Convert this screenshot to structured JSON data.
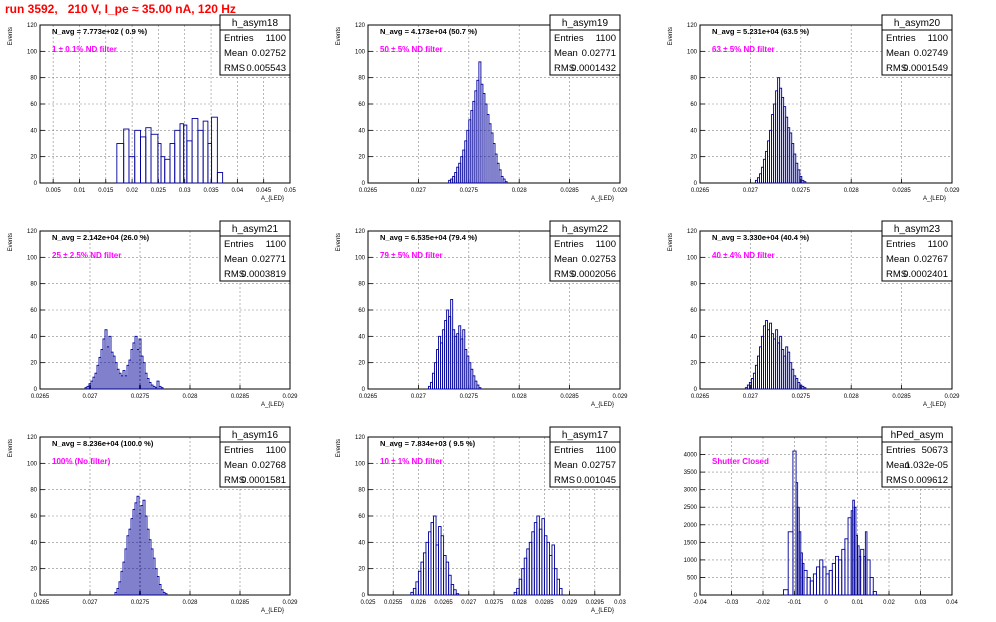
{
  "page_title": "run 3592,   210 V, I_pe ≈ 35.00 nA, 120 Hz",
  "chart_data": [
    {
      "type": "histogram",
      "hist_name": "h_asym18",
      "navg_text": "N_avg = 7.773e+02 ( 0.9 %)",
      "filter_text": "1 ± 0.1% ND filter",
      "stats": [
        [
          "Entries",
          "1100"
        ],
        [
          "Mean",
          "0.02752"
        ],
        [
          "RMS",
          "0.005543"
        ]
      ],
      "ylabel": "Events",
      "xlabel": "A_{LED}",
      "xlim": [
        0.0025,
        0.05
      ],
      "ylim": [
        0,
        120
      ],
      "xticks": [
        0.005,
        0.01,
        0.015,
        0.02,
        0.025,
        0.03,
        0.035,
        0.04,
        0.045,
        0.05
      ],
      "xtick_labels": [
        "0.005",
        "0.01",
        "0.015",
        "0.02",
        "0.025",
        "0.03",
        "0.035",
        "0.04",
        "0.045",
        "0.05"
      ],
      "yticks": [
        0,
        20,
        40,
        60,
        80,
        100,
        120
      ],
      "ytick_labels": [
        "0",
        "20",
        "40",
        "60",
        "80",
        "100",
        "120"
      ],
      "bins": {
        "edges": [
          0.0171,
          0.0184,
          0.0194,
          0.0205,
          0.0216,
          0.0226,
          0.0236,
          0.0249,
          0.0255,
          0.0262,
          0.0272,
          0.0281,
          0.0291,
          0.0298,
          0.0304,
          0.0314,
          0.0325,
          0.0335,
          0.0344,
          0.0351,
          0.0362,
          0.0372
        ],
        "values": [
          30,
          41,
          20,
          40,
          35,
          42,
          37,
          30,
          20,
          18,
          30,
          40,
          45,
          44,
          32,
          49,
          40,
          47,
          30,
          50,
          8
        ]
      }
    },
    {
      "type": "histogram",
      "hist_name": "h_asym19",
      "navg_text": "N_avg = 4.173e+04 (50.7 %)",
      "filter_text": "50 ± 5% ND filter",
      "stats": [
        [
          "Entries",
          "1100"
        ],
        [
          "Mean",
          "0.02771"
        ],
        [
          "RMS",
          "0.0001432"
        ]
      ],
      "ylabel": "Events",
      "xlabel": "A_{LED}",
      "xlim": [
        0.0265,
        0.029
      ],
      "ylim": [
        0,
        120
      ],
      "xticks": [
        0.0265,
        0.027,
        0.0275,
        0.028,
        0.0285,
        0.029
      ],
      "xtick_labels": [
        "0.0265",
        "0.027",
        "0.0275",
        "0.028",
        "0.0285",
        "0.029"
      ],
      "yticks": [
        0,
        20,
        40,
        60,
        80,
        100,
        120
      ],
      "ytick_labels": [
        "0",
        "20",
        "40",
        "60",
        "80",
        "100",
        "120"
      ],
      "bins": {
        "start": 0.0273,
        "width": 2e-05,
        "values": [
          2,
          3,
          5,
          8,
          12,
          15,
          20,
          25,
          32,
          40,
          48,
          55,
          62,
          70,
          78,
          92,
          75,
          68,
          60,
          52,
          45,
          38,
          30,
          22,
          15,
          10,
          5,
          3,
          1
        ]
      }
    },
    {
      "type": "histogram",
      "hist_name": "h_asym20",
      "navg_text": "N_avg = 5.231e+04 (63.5 %)",
      "filter_text": "63 ± 5% ND filter",
      "stats": [
        [
          "Entries",
          "1100"
        ],
        [
          "Mean",
          "0.02749"
        ],
        [
          "RMS",
          "0.0001549"
        ]
      ],
      "ylabel": "Events",
      "xlabel": "A_{LED}",
      "xlim": [
        0.0265,
        0.029
      ],
      "ylim": [
        0,
        120
      ],
      "xticks": [
        0.0265,
        0.027,
        0.0275,
        0.028,
        0.0285,
        0.029
      ],
      "xtick_labels": [
        "0.0265",
        "0.027",
        "0.0275",
        "0.028",
        "0.0285",
        "0.029"
      ],
      "yticks": [
        0,
        20,
        40,
        60,
        80,
        100,
        120
      ],
      "ytick_labels": [
        "0",
        "20",
        "40",
        "60",
        "80",
        "100",
        "120"
      ],
      "bins": {
        "start": 0.02705,
        "width": 2e-05,
        "values": [
          2,
          4,
          7,
          12,
          18,
          24,
          32,
          40,
          52,
          60,
          70,
          80,
          72,
          65,
          58,
          50,
          42,
          38,
          30,
          22,
          15,
          10,
          5,
          2,
          1
        ]
      }
    },
    {
      "type": "histogram",
      "hist_name": "h_asym21",
      "navg_text": "N_avg = 2.142e+04 (26.0 %)",
      "filter_text": "25 ± 2.5% ND filter",
      "stats": [
        [
          "Entries",
          "1100"
        ],
        [
          "Mean",
          "0.02771"
        ],
        [
          "RMS",
          "0.0003819"
        ]
      ],
      "ylabel": "Events",
      "xlabel": "A_{LED}",
      "xlim": [
        0.0265,
        0.029
      ],
      "ylim": [
        0,
        120
      ],
      "xticks": [
        0.0265,
        0.027,
        0.0275,
        0.028,
        0.0285,
        0.029
      ],
      "xtick_labels": [
        "0.0265",
        "0.027",
        "0.0275",
        "0.028",
        "0.0285",
        "0.029"
      ],
      "yticks": [
        0,
        20,
        40,
        60,
        80,
        100,
        120
      ],
      "ytick_labels": [
        "0",
        "20",
        "40",
        "60",
        "80",
        "100",
        "120"
      ],
      "bins": {
        "start": 0.02695,
        "width": 2e-05,
        "values": [
          1,
          2,
          4,
          6,
          9,
          12,
          18,
          24,
          30,
          38,
          45,
          32,
          40,
          28,
          25,
          20,
          15,
          12,
          10,
          14,
          10,
          18,
          22,
          30,
          35,
          40,
          30,
          38,
          25,
          20,
          12,
          8,
          5,
          3,
          2,
          1,
          6,
          2,
          1
        ]
      }
    },
    {
      "type": "histogram",
      "hist_name": "h_asym22",
      "navg_text": "N_avg = 6.535e+04 (79.4 %)",
      "filter_text": "79 ± 5% ND filter",
      "stats": [
        [
          "Entries",
          "1100"
        ],
        [
          "Mean",
          "0.02753"
        ],
        [
          "RMS",
          "0.0002056"
        ]
      ],
      "ylabel": "Events",
      "xlabel": "A_{LED}",
      "xlim": [
        0.0265,
        0.029
      ],
      "ylim": [
        0,
        120
      ],
      "xticks": [
        0.0265,
        0.027,
        0.0275,
        0.028,
        0.0285,
        0.029
      ],
      "xtick_labels": [
        "0.0265",
        "0.027",
        "0.0275",
        "0.028",
        "0.0285",
        "0.029"
      ],
      "yticks": [
        0,
        20,
        40,
        60,
        80,
        100,
        120
      ],
      "ytick_labels": [
        "0",
        "20",
        "40",
        "60",
        "80",
        "100",
        "120"
      ],
      "bins": {
        "start": 0.0271,
        "width": 2e-05,
        "values": [
          2,
          5,
          12,
          20,
          30,
          40,
          35,
          45,
          52,
          60,
          55,
          68,
          45,
          40,
          42,
          48,
          38,
          45,
          30,
          25,
          20,
          15,
          10,
          6,
          3,
          1
        ]
      }
    },
    {
      "type": "histogram",
      "hist_name": "h_asym23",
      "navg_text": "N_avg = 3.330e+04 (40.4 %)",
      "filter_text": "40 ± 4% ND filter",
      "stats": [
        [
          "Entries",
          "1100"
        ],
        [
          "Mean",
          "0.02767"
        ],
        [
          "RMS",
          "0.0002401"
        ]
      ],
      "ylabel": "Events",
      "xlabel": "A_{LED}",
      "xlim": [
        0.0265,
        0.029
      ],
      "ylim": [
        0,
        120
      ],
      "xticks": [
        0.0265,
        0.027,
        0.0275,
        0.028,
        0.0285,
        0.029
      ],
      "xtick_labels": [
        "0.0265",
        "0.027",
        "0.0275",
        "0.028",
        "0.0285",
        "0.029"
      ],
      "yticks": [
        0,
        20,
        40,
        60,
        80,
        100,
        120
      ],
      "ytick_labels": [
        "0",
        "20",
        "40",
        "60",
        "80",
        "100",
        "120"
      ],
      "bins": {
        "start": 0.02695,
        "width": 2e-05,
        "values": [
          1,
          3,
          5,
          8,
          12,
          18,
          25,
          32,
          40,
          48,
          52,
          45,
          50,
          42,
          38,
          45,
          35,
          40,
          30,
          25,
          32,
          28,
          20,
          15,
          10,
          8,
          5,
          3,
          2,
          1
        ]
      }
    },
    {
      "type": "histogram",
      "hist_name": "h_asym16",
      "navg_text": "N_avg = 8.236e+04 (100.0 %)",
      "filter_text": "100% (No filter)",
      "stats": [
        [
          "Entries",
          "1100"
        ],
        [
          "Mean",
          "0.02768"
        ],
        [
          "RMS",
          "0.0001581"
        ]
      ],
      "ylabel": "Events",
      "xlabel": "A_{LED}",
      "xlim": [
        0.0265,
        0.029
      ],
      "ylim": [
        0,
        120
      ],
      "xticks": [
        0.0265,
        0.027,
        0.0275,
        0.028,
        0.0285,
        0.029
      ],
      "xtick_labels": [
        "0.0265",
        "0.027",
        "0.0275",
        "0.028",
        "0.0285",
        "0.029"
      ],
      "yticks": [
        0,
        20,
        40,
        60,
        80,
        100,
        120
      ],
      "ytick_labels": [
        "0",
        "20",
        "40",
        "60",
        "80",
        "100",
        "120"
      ],
      "bins": {
        "start": 0.02725,
        "width": 2e-05,
        "values": [
          2,
          5,
          10,
          18,
          25,
          35,
          45,
          50,
          58,
          65,
          70,
          75,
          62,
          68,
          72,
          60,
          50,
          42,
          35,
          28,
          20,
          14,
          8,
          4,
          2,
          1
        ]
      }
    },
    {
      "type": "histogram",
      "hist_name": "h_asym17",
      "navg_text": "N_avg = 7.834e+03 ( 9.5 %)",
      "filter_text": "10 ± 1% ND filter",
      "stats": [
        [
          "Entries",
          "1100"
        ],
        [
          "Mean",
          "0.02757"
        ],
        [
          "RMS",
          "0.001045"
        ]
      ],
      "ylabel": "Events",
      "xlabel": "A_{LED}",
      "xlim": [
        0.025,
        0.03
      ],
      "ylim": [
        0,
        120
      ],
      "xticks": [
        0.025,
        0.0255,
        0.026,
        0.0265,
        0.027,
        0.0275,
        0.028,
        0.0285,
        0.029,
        0.0295,
        0.03
      ],
      "xtick_labels": [
        "0.025",
        "0.0255",
        "0.026",
        "0.0265",
        "0.027",
        "0.0275",
        "0.028",
        "0.0285",
        "0.029",
        "0.0295",
        "0.03"
      ],
      "yticks": [
        0,
        20,
        40,
        60,
        80,
        100,
        120
      ],
      "ytick_labels": [
        "0",
        "20",
        "40",
        "60",
        "80",
        "100",
        "120"
      ],
      "bins": {
        "edges": [
          0.02585,
          0.0259,
          0.02595,
          0.026,
          0.02605,
          0.0261,
          0.02615,
          0.0262,
          0.02625,
          0.0263,
          0.02635,
          0.0264,
          0.02645,
          0.0265,
          0.02655,
          0.0266,
          0.02665,
          0.0267,
          0.02675,
          0.0268,
          0.0279,
          0.02795,
          0.028,
          0.02805,
          0.0281,
          0.02815,
          0.0282,
          0.02825,
          0.0283,
          0.02835,
          0.0284,
          0.02845,
          0.0285,
          0.02855,
          0.0286,
          0.02865,
          0.0287,
          0.02875,
          0.0288,
          0.02885
        ],
        "values": [
          2,
          5,
          10,
          18,
          25,
          32,
          40,
          48,
          55,
          60,
          38,
          52,
          45,
          30,
          25,
          15,
          8,
          4,
          1,
          0,
          2,
          5,
          12,
          20,
          28,
          35,
          40,
          48,
          55,
          60,
          50,
          58,
          45,
          40,
          30,
          38,
          20,
          12,
          5
        ]
      }
    },
    {
      "type": "histogram",
      "hist_name": "hPed_asym",
      "navg_text": "",
      "filter_text": "Shutter Closed",
      "stats": [
        [
          "Entries",
          "50673"
        ],
        [
          "Mean",
          "1.032e-05"
        ],
        [
          "RMS",
          "0.009612"
        ]
      ],
      "ylabel": "",
      "xlabel": "",
      "xlim": [
        -0.04,
        0.04
      ],
      "ylim": [
        0,
        4500
      ],
      "xticks": [
        -0.04,
        -0.03,
        -0.02,
        -0.01,
        0,
        0.01,
        0.02,
        0.03,
        0.04
      ],
      "xtick_labels": [
        "-0.04",
        "-0.03",
        "-0.02",
        "-0.01",
        "0",
        "0.01",
        "0.02",
        "0.03",
        "0.04"
      ],
      "yticks": [
        0,
        500,
        1000,
        1500,
        2000,
        2500,
        3000,
        3500,
        4000
      ],
      "ytick_labels": [
        "0",
        "500",
        "1000",
        "1500",
        "2000",
        "2500",
        "3000",
        "3500",
        "4000"
      ],
      "bins": {
        "edges": [
          -0.0135,
          -0.012,
          -0.0105,
          -0.0095,
          -0.009,
          -0.0085,
          -0.008,
          -0.0075,
          -0.007,
          -0.006,
          -0.005,
          -0.004,
          -0.003,
          -0.002,
          -0.001,
          0,
          0.001,
          0.002,
          0.003,
          0.004,
          0.005,
          0.006,
          0.007,
          0.008,
          0.0085,
          0.009,
          0.0095,
          0.01,
          0.0105,
          0.011,
          0.012,
          0.0125,
          0.013,
          0.014,
          0.015,
          0.016
        ],
        "values": [
          150,
          1800,
          4100,
          3200,
          2500,
          1800,
          1200,
          900,
          700,
          500,
          400,
          600,
          800,
          1000,
          800,
          600,
          700,
          900,
          1100,
          1000,
          1300,
          1600,
          2200,
          2400,
          2700,
          2500,
          1700,
          1400,
          1100,
          1300,
          1100,
          1800,
          1000,
          500,
          100
        ]
      }
    }
  ]
}
